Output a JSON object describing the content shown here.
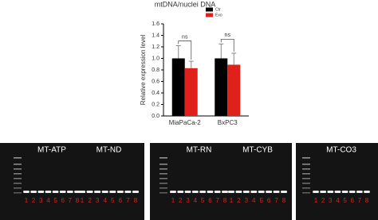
{
  "chart_data": {
    "type": "bar",
    "title": "mtDNA/nuclei DNA",
    "y_label": "Relative expression level",
    "categories": [
      "MiaPaCa-2",
      "BxPC3"
    ],
    "series": [
      {
        "name": "Ctr",
        "color": "#000000",
        "values": [
          1.0,
          1.0
        ],
        "errors": [
          0.22,
          0.25
        ]
      },
      {
        "name": "Exo",
        "color": "#e0201b",
        "values": [
          0.83,
          0.89
        ],
        "errors": [
          0.12,
          0.2
        ]
      }
    ],
    "annotations": [
      "ns",
      "ns"
    ],
    "ylim": [
      0,
      1.6
    ],
    "yticks": [
      {
        "value": 0,
        "label": "0.0"
      },
      {
        "value": 0.2,
        "label": "0.2"
      },
      {
        "value": 0.4,
        "label": "0.4"
      },
      {
        "value": 0.6,
        "label": "0.6"
      },
      {
        "value": 0.8,
        "label": "0.8"
      },
      {
        "value": 1.0,
        "label": "1.0"
      },
      {
        "value": 1.2,
        "label": "1.2"
      },
      {
        "value": 1.4,
        "label": "1.4"
      },
      {
        "value": 1.6,
        "label": "1.6"
      }
    ],
    "legend": "top-right"
  },
  "gels": [
    {
      "label": "MT-ATP",
      "lanes": [
        "1",
        "2",
        "3",
        "4",
        "5",
        "6",
        "7",
        "8"
      ]
    },
    {
      "label": "MT-ND",
      "lanes": [
        "1",
        "2",
        "3",
        "4",
        "5",
        "6",
        "7",
        "8"
      ]
    },
    {
      "label": "MT-RN",
      "lanes": [
        "1",
        "2",
        "3",
        "4",
        "5",
        "6",
        "7",
        "8"
      ]
    },
    {
      "label": "MT-CYB",
      "lanes": [
        "1",
        "2",
        "3",
        "4",
        "5",
        "6",
        "7",
        "8"
      ]
    },
    {
      "label": "MT-CO3",
      "lanes": [
        "1",
        "2",
        "3",
        "4",
        "5",
        "6",
        "7",
        "8"
      ]
    }
  ]
}
